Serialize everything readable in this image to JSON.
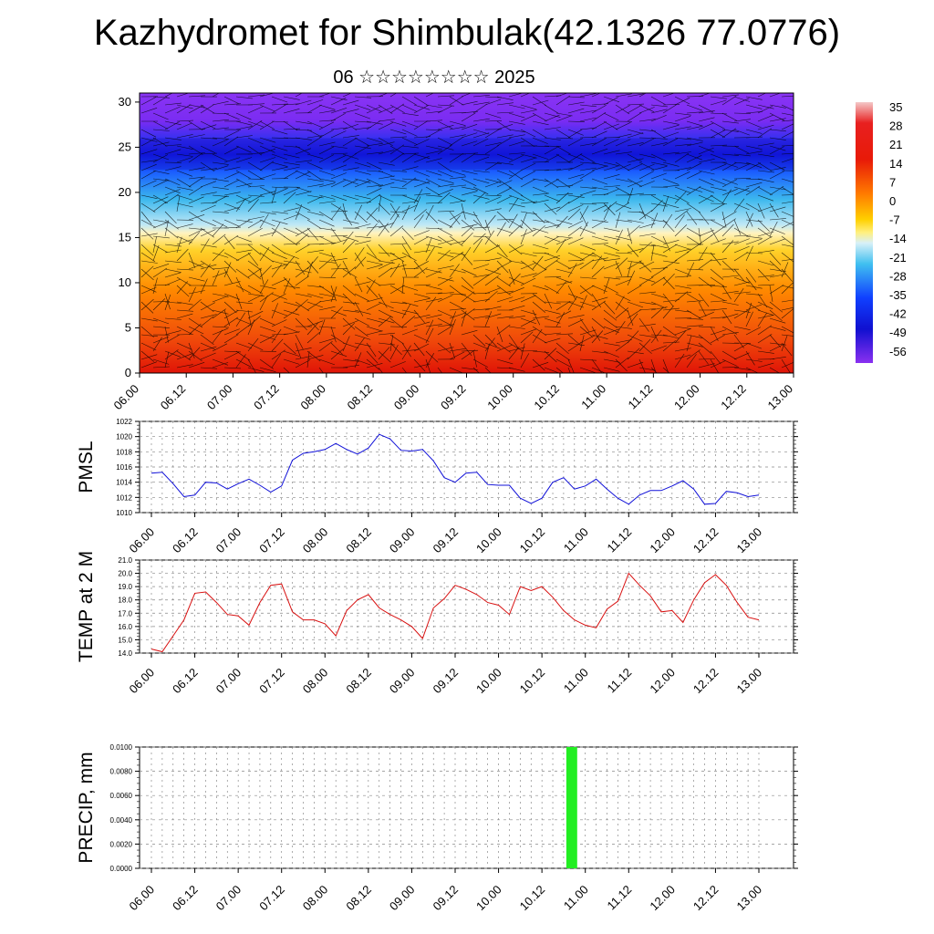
{
  "header": {
    "title": "Kazhydromet for Shimbulak(42.1326 77.0776)",
    "subtitle": "06 ☆☆☆☆☆☆☆☆ 2025"
  },
  "x_tick_labels": [
    "06.00",
    "06.12",
    "07.00",
    "07.12",
    "08.00",
    "08.12",
    "09.00",
    "09.12",
    "10.00",
    "10.12",
    "11.00",
    "11.12",
    "12.00",
    "12.12",
    "13.00"
  ],
  "chart_data": [
    {
      "id": "cross_section",
      "type": "heatmap",
      "yticks": [
        0,
        5,
        10,
        15,
        20,
        25,
        30
      ],
      "ylim": [
        0,
        31
      ],
      "colorbar_labels": [
        "35",
        "28",
        "21",
        "14",
        "7",
        "0",
        "-7",
        "-14",
        "-21",
        "-28",
        "-35",
        "-42",
        "-49",
        "-56"
      ],
      "colors": {
        "hot": "#e8100a",
        "warm": "#ff7a00",
        "mild": "#ffd400",
        "cool": "#fff6c0",
        "cold": "#4cc6f0",
        "frozen": "#1a2cff",
        "deep": "#7a2cf0"
      }
    },
    {
      "id": "pmsl",
      "type": "line",
      "ylabel": "PMSL",
      "ylim": [
        1010,
        1022
      ],
      "yticks": [
        "1010",
        "1012",
        "1014",
        "1016",
        "1018",
        "1020",
        "1022"
      ],
      "color": "#1010d8",
      "values": [
        1015.2,
        1015.3,
        1013.8,
        1012.1,
        1012.3,
        1014.0,
        1013.9,
        1013.1,
        1013.8,
        1014.4,
        1013.6,
        1012.7,
        1013.5,
        1016.9,
        1017.8,
        1018.0,
        1018.3,
        1019.1,
        1018.3,
        1017.7,
        1018.5,
        1020.3,
        1019.7,
        1018.2,
        1018.1,
        1018.3,
        1016.8,
        1014.6,
        1014.0,
        1015.2,
        1015.3,
        1013.7,
        1013.6,
        1013.6,
        1011.9,
        1011.2,
        1011.9,
        1014.0,
        1014.6,
        1013.1,
        1013.5,
        1014.4,
        1013.1,
        1011.9,
        1011.1,
        1012.3,
        1012.9,
        1012.9,
        1013.5,
        1014.2,
        1013.1,
        1011.1,
        1011.2,
        1012.8,
        1012.6,
        1012.1,
        1012.3
      ]
    },
    {
      "id": "temp",
      "type": "line",
      "ylabel": "TEMP at 2 M",
      "ylim": [
        14.0,
        21.0
      ],
      "yticks": [
        "14.0",
        "15.0",
        "16.0",
        "17.0",
        "18.0",
        "19.0",
        "20.0",
        "21.0"
      ],
      "color": "#d81010",
      "values": [
        14.3,
        14.1,
        15.3,
        16.5,
        18.5,
        18.6,
        17.8,
        16.9,
        16.8,
        16.1,
        17.8,
        19.1,
        19.2,
        17.1,
        16.5,
        16.5,
        16.2,
        15.3,
        17.2,
        18.0,
        18.4,
        17.4,
        16.9,
        16.5,
        16.0,
        15.1,
        17.4,
        18.1,
        19.1,
        18.8,
        18.4,
        17.8,
        17.6,
        16.9,
        19.0,
        18.7,
        19.0,
        18.2,
        17.2,
        16.5,
        16.1,
        15.9,
        17.3,
        17.9,
        20.0,
        19.1,
        18.3,
        17.1,
        17.2,
        16.3,
        18.0,
        19.3,
        19.9,
        19.1,
        17.8,
        16.7,
        16.5
      ]
    },
    {
      "id": "precip",
      "type": "bar",
      "ylabel": "PRECIP, mm",
      "ylim": [
        0,
        0.01
      ],
      "yticks": [
        "0.0000",
        "0.0020",
        "0.0040",
        "0.0060",
        "0.0080",
        "0.0100"
      ],
      "color": "#22ee22",
      "bars": [
        {
          "x_index": 38.75,
          "width_steps": 1.0,
          "value": 0.01
        }
      ]
    }
  ]
}
